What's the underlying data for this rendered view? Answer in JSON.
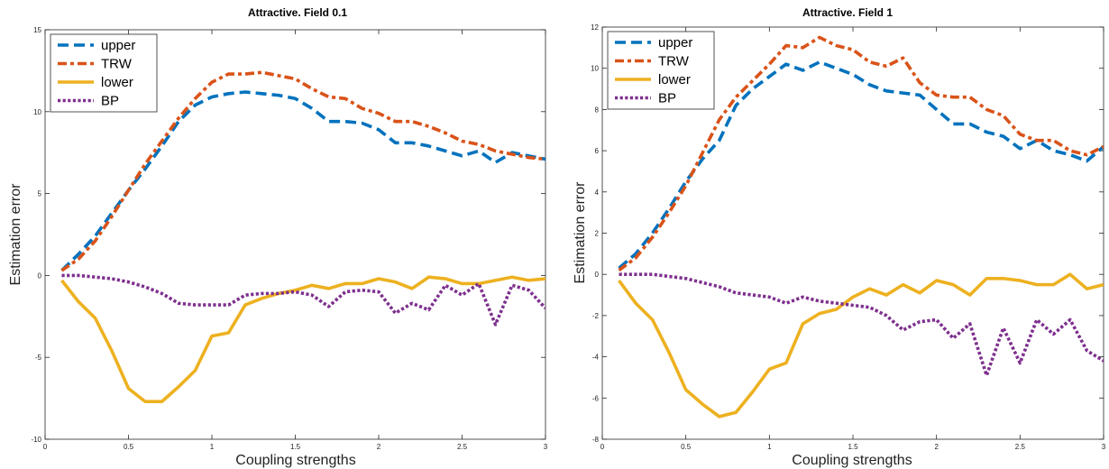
{
  "chart_data": [
    {
      "type": "line",
      "title": "Attractive. Field 0.1",
      "xlabel": "Coupling strengths",
      "ylabel": "Estimation error",
      "xlim": [
        0,
        3
      ],
      "ylim": [
        -10,
        15
      ],
      "xticks": [
        0,
        0.5,
        1,
        1.5,
        2,
        2.5,
        3
      ],
      "xtick_labels": [
        "0",
        "0.5",
        "1",
        "1.5",
        "2",
        "2.5",
        "3"
      ],
      "yticks": [
        -10,
        -5,
        0,
        5,
        10,
        15
      ],
      "ytick_labels": [
        "-10",
        "-5",
        "0",
        "5",
        "10",
        "15"
      ],
      "grid": false,
      "legend_position": "top-left",
      "x": [
        0.1,
        0.2,
        0.3,
        0.4,
        0.5,
        0.6,
        0.7,
        0.8,
        0.9,
        1.0,
        1.1,
        1.2,
        1.3,
        1.4,
        1.5,
        1.6,
        1.7,
        1.8,
        1.9,
        2.0,
        2.1,
        2.2,
        2.3,
        2.4,
        2.5,
        2.6,
        2.7,
        2.8,
        2.9,
        3.0
      ],
      "series": [
        {
          "name": "upper",
          "color": "#0072BD",
          "style": "dash",
          "values": [
            0.3,
            1.3,
            2.4,
            3.8,
            5.2,
            6.5,
            7.9,
            9.4,
            10.4,
            10.9,
            11.1,
            11.2,
            11.1,
            11.0,
            10.8,
            10.2,
            9.4,
            9.4,
            9.3,
            8.9,
            8.1,
            8.1,
            7.9,
            7.6,
            7.3,
            7.6,
            6.9,
            7.5,
            7.3,
            7.1
          ]
        },
        {
          "name": "TRW",
          "color": "#D95319",
          "style": "dashdot",
          "values": [
            0.3,
            1.0,
            2.1,
            3.6,
            5.2,
            6.8,
            8.2,
            9.6,
            10.8,
            11.8,
            12.3,
            12.3,
            12.4,
            12.2,
            12.0,
            11.4,
            10.9,
            10.8,
            10.2,
            9.9,
            9.4,
            9.4,
            9.1,
            8.7,
            8.2,
            8.0,
            7.6,
            7.4,
            7.2,
            7.1
          ]
        },
        {
          "name": "lower",
          "color": "#EDB120",
          "style": "solid",
          "values": [
            -0.3,
            -1.6,
            -2.6,
            -4.6,
            -6.9,
            -7.7,
            -7.7,
            -6.8,
            -5.8,
            -3.7,
            -3.5,
            -1.8,
            -1.4,
            -1.1,
            -0.9,
            -0.6,
            -0.8,
            -0.5,
            -0.5,
            -0.2,
            -0.4,
            -0.8,
            -0.1,
            -0.2,
            -0.5,
            -0.5,
            -0.3,
            -0.1,
            -0.3,
            -0.2
          ]
        },
        {
          "name": "BP",
          "color": "#7E2F8E",
          "style": "dot",
          "values": [
            0.0,
            0.0,
            -0.1,
            -0.2,
            -0.4,
            -0.7,
            -1.1,
            -1.7,
            -1.8,
            -1.8,
            -1.8,
            -1.2,
            -1.1,
            -1.1,
            -1.0,
            -1.2,
            -1.9,
            -1.0,
            -0.9,
            -1.0,
            -2.3,
            -1.7,
            -2.1,
            -0.6,
            -1.2,
            -0.5,
            -3.0,
            -0.6,
            -0.9,
            -2.0
          ]
        }
      ]
    },
    {
      "type": "line",
      "title": "Attractive. Field 1",
      "xlabel": "Coupling strengths",
      "ylabel": "Estimation error",
      "xlim": [
        0,
        3
      ],
      "ylim": [
        -8,
        12
      ],
      "xticks": [
        0,
        0.5,
        1,
        1.5,
        2,
        2.5,
        3
      ],
      "xtick_labels": [
        "0",
        "0.5",
        "1",
        "1.5",
        "2",
        "2.5",
        "3"
      ],
      "yticks": [
        -8,
        -6,
        -4,
        -2,
        0,
        2,
        4,
        6,
        8,
        10,
        12
      ],
      "ytick_labels": [
        "-8",
        "-6",
        "-4",
        "-2",
        "0",
        "2",
        "4",
        "6",
        "8",
        "10",
        "12"
      ],
      "grid": false,
      "legend_position": "top-left",
      "x": [
        0.1,
        0.2,
        0.3,
        0.4,
        0.5,
        0.6,
        0.7,
        0.8,
        0.9,
        1.0,
        1.1,
        1.2,
        1.3,
        1.4,
        1.5,
        1.6,
        1.7,
        1.8,
        1.9,
        2.0,
        2.1,
        2.2,
        2.3,
        2.4,
        2.5,
        2.6,
        2.7,
        2.8,
        2.9,
        3.0
      ],
      "series": [
        {
          "name": "upper",
          "color": "#0072BD",
          "style": "dash",
          "values": [
            0.3,
            1.0,
            2.0,
            3.2,
            4.5,
            5.6,
            6.5,
            8.2,
            9.0,
            9.6,
            10.2,
            9.9,
            10.3,
            10.0,
            9.7,
            9.2,
            8.9,
            8.8,
            8.7,
            8.0,
            7.3,
            7.3,
            6.9,
            6.7,
            6.1,
            6.5,
            6.0,
            5.8,
            5.5,
            6.2
          ]
        },
        {
          "name": "TRW",
          "color": "#D95319",
          "style": "dashdot",
          "values": [
            0.2,
            0.8,
            1.8,
            3.0,
            4.3,
            5.9,
            7.5,
            8.6,
            9.4,
            10.2,
            11.1,
            11.0,
            11.5,
            11.1,
            10.9,
            10.3,
            10.1,
            10.5,
            9.3,
            8.7,
            8.6,
            8.6,
            8.0,
            7.7,
            6.8,
            6.5,
            6.5,
            6.0,
            5.8,
            6.2
          ]
        },
        {
          "name": "lower",
          "color": "#EDB120",
          "style": "solid",
          "values": [
            -0.3,
            -1.4,
            -2.2,
            -3.8,
            -5.6,
            -6.3,
            -6.9,
            -6.7,
            -5.7,
            -4.6,
            -4.3,
            -2.4,
            -1.9,
            -1.7,
            -1.1,
            -0.7,
            -1.0,
            -0.5,
            -0.9,
            -0.3,
            -0.5,
            -1.0,
            -0.2,
            -0.2,
            -0.3,
            -0.5,
            -0.5,
            0.0,
            -0.7,
            -0.5
          ]
        },
        {
          "name": "BP",
          "color": "#7E2F8E",
          "style": "dot",
          "values": [
            0.0,
            0.0,
            0.0,
            -0.1,
            -0.2,
            -0.4,
            -0.6,
            -0.9,
            -1.0,
            -1.1,
            -1.4,
            -1.1,
            -1.3,
            -1.4,
            -1.5,
            -1.6,
            -2.0,
            -2.7,
            -2.3,
            -2.2,
            -3.1,
            -2.4,
            -4.9,
            -2.6,
            -4.3,
            -2.2,
            -2.9,
            -2.2,
            -3.7,
            -4.2
          ]
        }
      ]
    }
  ]
}
